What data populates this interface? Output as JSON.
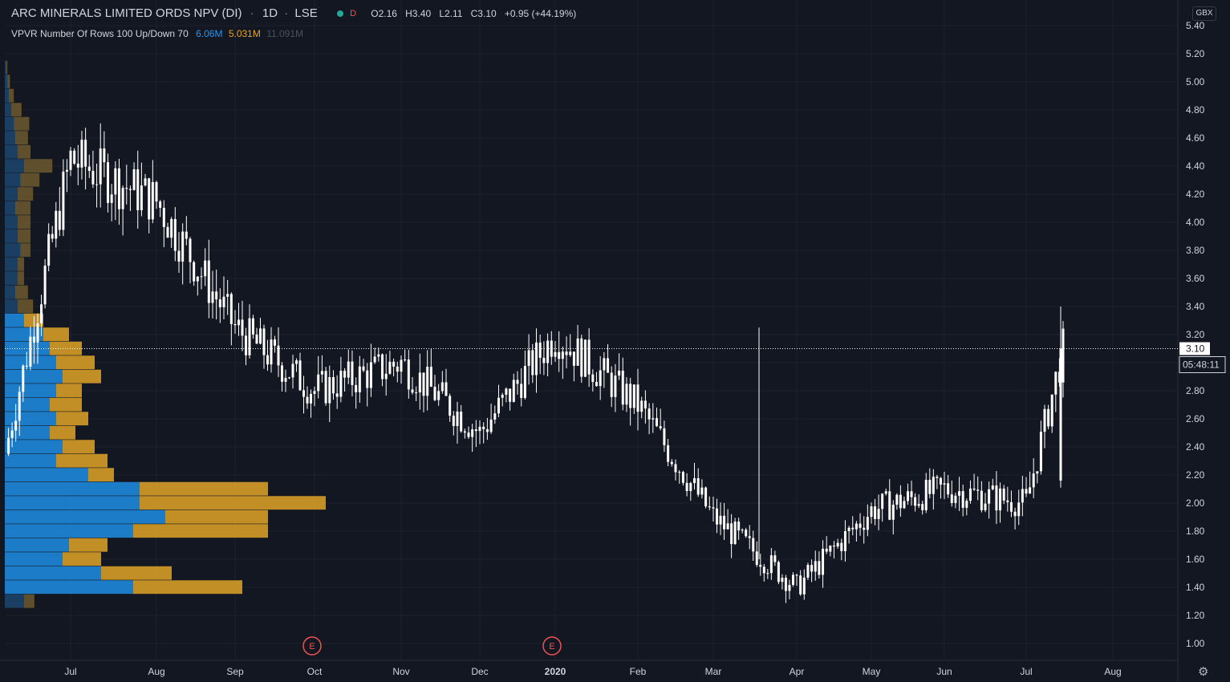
{
  "header": {
    "symbol": "ARC MINERALS LIMITED ORDS NPV (DI)",
    "interval": "1D",
    "exchange": "LSE",
    "badge": "D",
    "open": "O2.16",
    "high": "H3.40",
    "low": "L2.11",
    "close": "C3.10",
    "change": "+0.95 (+44.19%)"
  },
  "indicator": {
    "name": "VPVR Number Of Rows 100 Up/Down 70",
    "up_volume": "6.06M",
    "down_volume": "5.031M",
    "total_volume": "11.091M"
  },
  "price_axis": {
    "currency": "GBX",
    "last_price_label": "3.10",
    "countdown": "05:48:11"
  },
  "earnings_markers": [
    "E",
    "E"
  ],
  "colors": {
    "background": "#131722",
    "candle": "#ffffff",
    "up_volume": "#2196f3",
    "down_volume": "#e0a526",
    "earnings": "#ef5350"
  },
  "chart_data": {
    "type": "candlestick",
    "title": "ARC MINERALS LIMITED ORDS NPV (DI)",
    "ylabel": "GBX",
    "ylim": [
      0.9,
      5.45
    ],
    "y_ticks": [
      "5.40",
      "5.20",
      "5.00",
      "4.80",
      "4.60",
      "4.40",
      "4.20",
      "4.00",
      "3.80",
      "3.60",
      "3.40",
      "3.20",
      "3.00",
      "2.80",
      "2.60",
      "2.40",
      "2.20",
      "2.00",
      "1.80",
      "1.60",
      "1.40",
      "1.20",
      "1.00"
    ],
    "x_ticks": [
      "Jul",
      "Aug",
      "Sep",
      "Oct",
      "Nov",
      "Dec",
      "2020",
      "Feb",
      "Mar",
      "Apr",
      "May",
      "Jun",
      "Jul",
      "Aug"
    ],
    "last_price": 3.1,
    "price_path": [
      {
        "month": "Jun 2019",
        "price": 2.35
      },
      {
        "month": "Jul 2019",
        "price": 4.45
      },
      {
        "month": "Aug 2019",
        "price": 4.15
      },
      {
        "month": "Sep 2019",
        "price": 3.25
      },
      {
        "month": "Oct 2019",
        "price": 2.8
      },
      {
        "month": "Nov 2019",
        "price": 3.0
      },
      {
        "month": "Dec 2019",
        "price": 2.5
      },
      {
        "month": "Jan 2020",
        "price": 3.2
      },
      {
        "month": "Feb 2020",
        "price": 2.7
      },
      {
        "month": "Mar 2020",
        "price": 1.9
      },
      {
        "month": "Apr 2020",
        "price": 1.4
      },
      {
        "month": "May 2020",
        "price": 1.95
      },
      {
        "month": "Jun 2020",
        "price": 2.1
      },
      {
        "month": "Jul 2020",
        "price": 2.0
      },
      {
        "month": "Jul 2020 (last)",
        "price": 3.1
      }
    ],
    "volume_profile": [
      {
        "price": 1.3,
        "up": 0.15,
        "down": 0.08
      },
      {
        "price": 1.4,
        "up": 1.0,
        "down": 0.85
      },
      {
        "price": 1.5,
        "up": 0.75,
        "down": 0.55
      },
      {
        "price": 1.6,
        "up": 0.45,
        "down": 0.3
      },
      {
        "price": 1.7,
        "up": 0.5,
        "down": 0.3
      },
      {
        "price": 1.8,
        "up": 1.0,
        "down": 1.05
      },
      {
        "price": 1.9,
        "up": 1.25,
        "down": 0.8
      },
      {
        "price": 2.0,
        "up": 1.05,
        "down": 1.45
      },
      {
        "price": 2.1,
        "up": 1.05,
        "down": 1.0
      },
      {
        "price": 2.2,
        "up": 0.65,
        "down": 0.2
      },
      {
        "price": 2.3,
        "up": 0.4,
        "down": 0.4
      },
      {
        "price": 2.4,
        "up": 0.45,
        "down": 0.25
      },
      {
        "price": 2.5,
        "up": 0.35,
        "down": 0.2
      },
      {
        "price": 2.6,
        "up": 0.4,
        "down": 0.25
      },
      {
        "price": 2.7,
        "up": 0.35,
        "down": 0.25
      },
      {
        "price": 2.8,
        "up": 0.4,
        "down": 0.2
      },
      {
        "price": 2.9,
        "up": 0.45,
        "down": 0.3
      },
      {
        "price": 3.0,
        "up": 0.4,
        "down": 0.3
      },
      {
        "price": 3.1,
        "up": 0.35,
        "down": 0.25
      },
      {
        "price": 3.2,
        "up": 0.3,
        "down": 0.2
      },
      {
        "price": 3.3,
        "up": 0.15,
        "down": 0.15
      },
      {
        "price": 3.4,
        "up": 0.1,
        "down": 0.12
      },
      {
        "price": 3.5,
        "up": 0.08,
        "down": 0.1
      },
      {
        "price": 3.6,
        "up": 0.1,
        "down": 0.05
      },
      {
        "price": 3.7,
        "up": 0.1,
        "down": 0.05
      },
      {
        "price": 3.8,
        "up": 0.12,
        "down": 0.08
      },
      {
        "price": 3.9,
        "up": 0.1,
        "down": 0.1
      },
      {
        "price": 4.0,
        "up": 0.1,
        "down": 0.1
      },
      {
        "price": 4.1,
        "up": 0.08,
        "down": 0.12
      },
      {
        "price": 4.2,
        "up": 0.1,
        "down": 0.12
      },
      {
        "price": 4.3,
        "up": 0.12,
        "down": 0.15
      },
      {
        "price": 4.4,
        "up": 0.15,
        "down": 0.22
      },
      {
        "price": 4.5,
        "up": 0.1,
        "down": 0.1
      },
      {
        "price": 4.6,
        "up": 0.08,
        "down": 0.1
      },
      {
        "price": 4.7,
        "up": 0.07,
        "down": 0.12
      },
      {
        "price": 4.8,
        "up": 0.05,
        "down": 0.08
      },
      {
        "price": 4.9,
        "up": 0.03,
        "down": 0.04
      },
      {
        "price": 5.0,
        "up": 0.02,
        "down": 0.02
      },
      {
        "price": 5.1,
        "up": 0.01,
        "down": 0.01
      }
    ]
  }
}
